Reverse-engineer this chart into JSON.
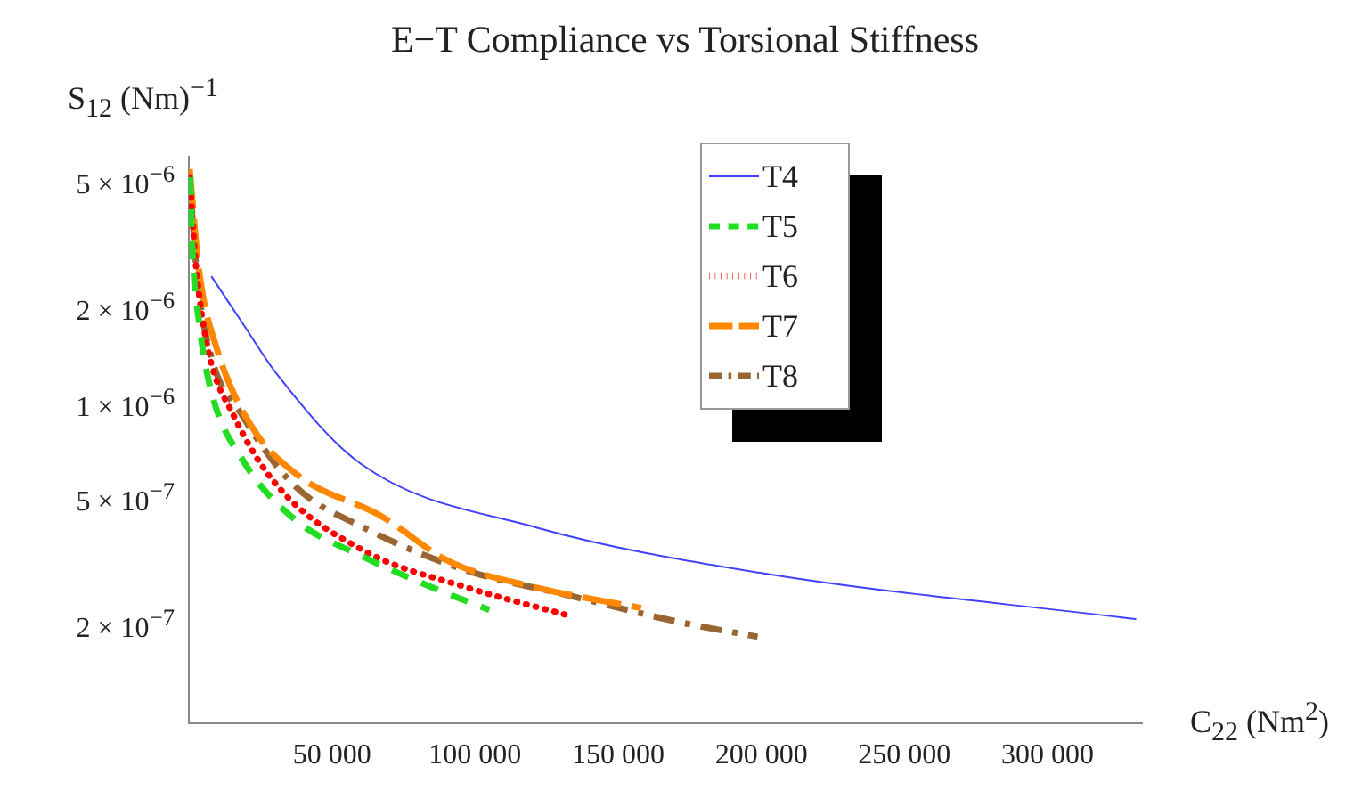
{
  "chart_data": {
    "type": "line",
    "title": "E−T Compliance vs Torsional Stiffness",
    "xlabel": "C$_{22}$ (Nm$^{2}$)",
    "ylabel": "S$_{12}$ (Nm)$^{−1}$",
    "log": "y",
    "grid": false,
    "legend": "top",
    "marker": "none",
    "xlim": [
      0,
      333000
    ],
    "ylim": [
      9.4e-08,
      5.8e-06
    ],
    "xticks": [
      {
        "value": 50000,
        "label": "50 000"
      },
      {
        "value": 100000,
        "label": "100 000"
      },
      {
        "value": 150000,
        "label": "150 000"
      },
      {
        "value": 200000,
        "label": "200 000"
      },
      {
        "value": 250000,
        "label": "250 000"
      },
      {
        "value": 300000,
        "label": "300 000"
      }
    ],
    "yticks": [
      {
        "value": 2e-07,
        "label": "2 × 10$^{−7}$"
      },
      {
        "value": 5e-07,
        "label": "5 × 10$^{−7}$"
      },
      {
        "value": 1e-06,
        "label": "1 × 10$^{−6}$"
      },
      {
        "value": 2e-06,
        "label": "2 × 10$^{−6}$"
      },
      {
        "value": 5e-06,
        "label": "5 × 10$^{−6}$"
      }
    ],
    "series": [
      {
        "name": "T4",
        "color": "#4040ff",
        "line_style": "solid",
        "x": [
          7850,
          18700,
          30800,
          60100,
          121400,
          200000,
          331000
        ],
        "values": [
          2.43e-06,
          1.73e-06,
          1.19e-06,
          6.2e-07,
          3.9e-07,
          2.8e-07,
          2e-07
        ]
      },
      {
        "name": "T5",
        "color": "#22dd22",
        "line_style": "dashed",
        "x": [
          500,
          1200,
          3600,
          7850,
          18700,
          36800,
          61000,
          85100,
          105000
        ],
        "values": [
          5e-06,
          3.04e-06,
          1.73e-06,
          1.05e-06,
          6.4e-07,
          4.15e-07,
          3.15e-07,
          2.52e-07,
          2.14e-07
        ]
      },
      {
        "name": "T6",
        "color": "#ff0000",
        "line_style": "dotted",
        "x": [
          300,
          2400,
          6600,
          15700,
          30800,
          61000,
          97200,
          134000
        ],
        "values": [
          5e-06,
          2.68e-06,
          1.44e-06,
          8.8e-07,
          5.3e-07,
          3.3e-07,
          2.52e-07,
          2.04e-07
        ]
      },
      {
        "name": "T7",
        "color": "#ff8800",
        "line_style": "longdash",
        "x": [
          300,
          3600,
          9700,
          21700,
          38600,
          67000,
          91200,
          121400,
          158000
        ],
        "values": [
          5.3e-06,
          2.52e-06,
          1.44e-06,
          8.2e-07,
          5.66e-07,
          4.25e-07,
          3.04e-07,
          2.52e-07,
          2.17e-07
        ]
      },
      {
        "name": "T8",
        "color": "#996633",
        "line_style": "dashdot",
        "x": [
          300,
          3000,
          7850,
          18700,
          36800,
          61000,
          97200,
          133500,
          170000,
          198700
        ],
        "values": [
          5e-06,
          2.37e-06,
          1.35e-06,
          8.8e-07,
          5.3e-07,
          3.9e-07,
          2.85e-07,
          2.37e-07,
          1.97e-07,
          1.76e-07
        ]
      }
    ]
  }
}
